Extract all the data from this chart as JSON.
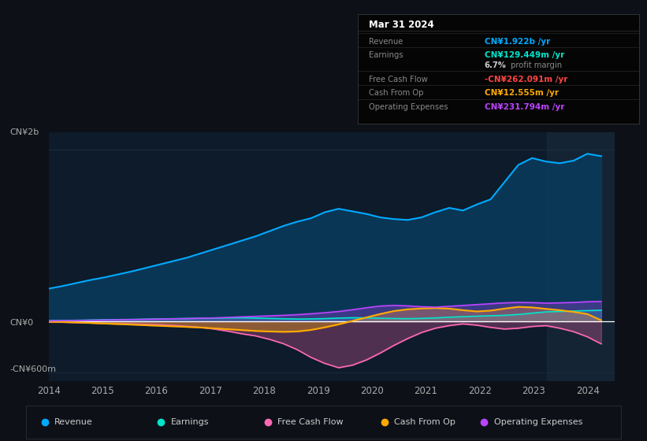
{
  "bg_color": "#0d1117",
  "plot_bg_color": "#0d1b2a",
  "y_label_top": "CN¥2b",
  "y_label_zero": "CN¥0",
  "y_label_bottom": "-CN¥600m",
  "x_ticks": [
    2014,
    2015,
    2016,
    2017,
    2018,
    2019,
    2020,
    2021,
    2022,
    2023,
    2024
  ],
  "tooltip_title": "Mar 31 2024",
  "revenue_color": "#00aaff",
  "revenue_fill": "#0a3a5c",
  "earnings_color": "#00e5cc",
  "fcf_color": "#ff69b4",
  "cfo_color": "#ffaa00",
  "opex_color": "#bb44ff",
  "legend_items": [
    {
      "label": "Revenue",
      "color": "#00aaff"
    },
    {
      "label": "Earnings",
      "color": "#00e5cc"
    },
    {
      "label": "Free Cash Flow",
      "color": "#ff69b4"
    },
    {
      "label": "Cash From Op",
      "color": "#ffaa00"
    },
    {
      "label": "Operating Expenses",
      "color": "#bb44ff"
    }
  ],
  "tooltip_rows": [
    {
      "label": "Revenue",
      "value": "CN¥1.922b /yr",
      "color": "#00aaff"
    },
    {
      "label": "Earnings",
      "value": "CN¥129.449m /yr",
      "color": "#00e5cc"
    },
    {
      "label": "",
      "value": "6.7% profit margin",
      "color": "#aaaaaa"
    },
    {
      "label": "Free Cash Flow",
      "value": "-CN¥262.091m /yr",
      "color": "#ff4444"
    },
    {
      "label": "Cash From Op",
      "value": "CN¥12.555m /yr",
      "color": "#ffaa00"
    },
    {
      "label": "Operating Expenses",
      "value": "CN¥231.794m /yr",
      "color": "#bb44ff"
    }
  ]
}
